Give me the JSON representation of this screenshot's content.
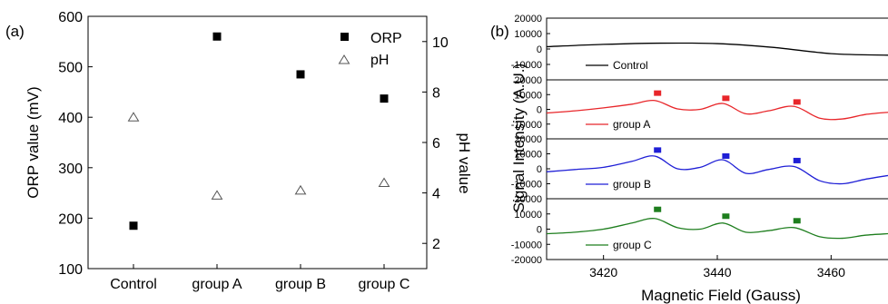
{
  "panel_labels": {
    "a": "(a)",
    "b": "(b)"
  },
  "chart_data": [
    {
      "type": "scatter",
      "panel": "(a)",
      "categories": [
        "Control",
        "group A",
        "group B",
        "group C"
      ],
      "ylabel": "ORP value (mV)",
      "y2label": "pH value",
      "ylim": [
        100,
        600
      ],
      "y2lim": [
        1,
        11
      ],
      "yticks": [
        "100",
        "200",
        "300",
        "400",
        "500",
        "600"
      ],
      "y2ticks": [
        "2",
        "4",
        "6",
        "8",
        "10"
      ],
      "series": [
        {
          "name": "ORP",
          "axis": "left",
          "marker": "filled-square",
          "values": [
            185,
            560,
            485,
            437
          ]
        },
        {
          "name": "pH",
          "axis": "right",
          "marker": "open-triangle",
          "values": [
            7.0,
            3.9,
            4.1,
            4.4
          ]
        }
      ],
      "legend": "top-right"
    },
    {
      "type": "line",
      "panel": "(b)",
      "xlabel": "Magnetic Field (Gauss)",
      "ylabel": "Signal Intensity (A.U.)",
      "xlim": [
        3410,
        3470
      ],
      "xticks": [
        "3420",
        "3440",
        "3460"
      ],
      "subplots": [
        {
          "name": "Control",
          "color": "#000000",
          "ylim": [
            -20000,
            20000
          ],
          "yticks": [
            "20000",
            "10000",
            "0",
            "-10000"
          ],
          "x": [
            3410,
            3420,
            3430,
            3440,
            3450,
            3460,
            3470
          ],
          "y": [
            1500,
            3000,
            3800,
            3500,
            1000,
            -3000,
            -4000
          ],
          "markers": []
        },
        {
          "name": "group A",
          "color": "#e8262a",
          "ylim": [
            -20000,
            20000
          ],
          "yticks": [
            "20000",
            "10000",
            "0",
            "-10000"
          ],
          "x": [
            3410,
            3415,
            3420,
            3425,
            3429,
            3433,
            3437,
            3441,
            3445,
            3449,
            3453.5,
            3458,
            3462,
            3466,
            3470
          ],
          "y": [
            -2500,
            -1000,
            1000,
            3500,
            6000,
            300,
            0,
            4000,
            -3000,
            -1000,
            2000,
            -6000,
            -6500,
            -3500,
            -2000
          ],
          "markers": [
            [
              3429.5,
              11000
            ],
            [
              3441.5,
              7500
            ],
            [
              3454,
              5000
            ]
          ]
        },
        {
          "name": "group B",
          "color": "#1f1fd6",
          "ylim": [
            -20000,
            20000
          ],
          "yticks": [
            "20000",
            "10000",
            "0",
            "-10000"
          ],
          "x": [
            3410,
            3415,
            3420,
            3425,
            3429,
            3433,
            3437,
            3441,
            3445,
            3449,
            3453.5,
            3458,
            3462,
            3466,
            3470
          ],
          "y": [
            -2000,
            -500,
            1000,
            5000,
            8500,
            0,
            1000,
            6000,
            -3000,
            -500,
            1500,
            -8000,
            -10000,
            -7000,
            -4500
          ],
          "markers": [
            [
              3429.5,
              12500
            ],
            [
              3441.5,
              8500
            ],
            [
              3454,
              5500
            ]
          ]
        },
        {
          "name": "group C",
          "color": "#1e7e1e",
          "ylim": [
            -20000,
            20000
          ],
          "yticks": [
            "20000",
            "10000",
            "0",
            "-10000",
            "-20000"
          ],
          "x": [
            3410,
            3415,
            3420,
            3425,
            3429,
            3433,
            3437,
            3441,
            3445,
            3449,
            3453.5,
            3458,
            3462,
            3466,
            3470
          ],
          "y": [
            -3000,
            -2000,
            0,
            4000,
            7000,
            1000,
            0,
            4000,
            -2000,
            -1000,
            1000,
            -5000,
            -6000,
            -4000,
            -3000
          ],
          "markers": [
            [
              3429.5,
              13000
            ],
            [
              3441.5,
              8500
            ],
            [
              3454,
              5500
            ]
          ]
        }
      ]
    }
  ]
}
